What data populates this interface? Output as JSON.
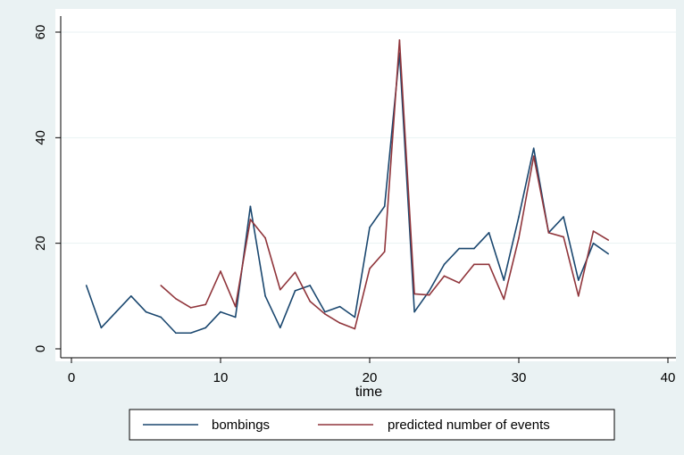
{
  "chart_data": {
    "type": "line",
    "title": "",
    "xlabel": "time",
    "ylabel": "",
    "xlim": [
      0,
      40
    ],
    "ylim": [
      0,
      60
    ],
    "x_ticks": [
      0,
      10,
      20,
      30,
      40
    ],
    "y_ticks": [
      0,
      20,
      40,
      60
    ],
    "grid": "horizontal",
    "legend_position": "bottom",
    "series": [
      {
        "name": "bombings",
        "color": "#1a476f",
        "x": [
          1,
          2,
          3,
          4,
          5,
          6,
          7,
          8,
          9,
          10,
          11,
          12,
          13,
          14,
          15,
          16,
          17,
          18,
          19,
          20,
          21,
          22,
          23,
          24,
          25,
          26,
          27,
          28,
          29,
          30,
          31,
          32,
          33,
          34,
          35,
          36
        ],
        "y": [
          12,
          4,
          7,
          10,
          7,
          6,
          3,
          3,
          4,
          7,
          6,
          27,
          10,
          4,
          11,
          12,
          7,
          8,
          6,
          23,
          27,
          56,
          7,
          11,
          16,
          19,
          19,
          22,
          13,
          25,
          38,
          22,
          25,
          13,
          20,
          18
        ]
      },
      {
        "name": "predicted number of events",
        "color": "#90353b",
        "x": [
          6,
          7,
          8,
          9,
          10,
          11,
          12,
          13,
          14,
          15,
          16,
          17,
          18,
          19,
          20,
          21,
          22,
          23,
          24,
          25,
          26,
          27,
          28,
          29,
          30,
          31,
          32,
          33,
          34,
          35,
          36
        ],
        "y": [
          12,
          9.5,
          7.8,
          8.4,
          14.7,
          8,
          24.5,
          21,
          11.2,
          14.5,
          9,
          6.6,
          4.9,
          3.8,
          15.2,
          18.4,
          58.5,
          10.4,
          10.2,
          13.8,
          12.5,
          16,
          16,
          9.4,
          21,
          36.5,
          22,
          21.2,
          10,
          22.3,
          20.6
        ]
      }
    ]
  }
}
